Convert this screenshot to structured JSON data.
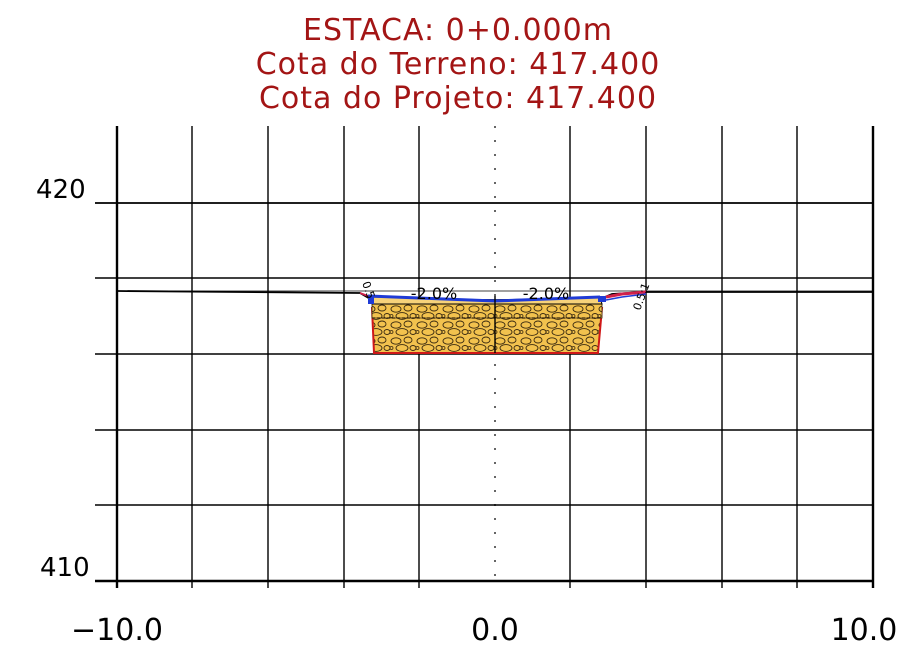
{
  "header": {
    "station": "ESTACA: 0+0.000m",
    "ground_elevation": "Cota do Terreno:  417.400",
    "design_elevation": "Cota do Projeto: 417.400"
  },
  "axes": {
    "x_ticks": [
      "−10.0",
      "0.0",
      "10.0"
    ],
    "y_ticks": [
      "420",
      "410"
    ]
  },
  "annotations": {
    "slope_left": "-2.0%",
    "slope_right": "-2.0%",
    "side_slope_left": "0.5",
    "side_slope_right": "0.5:1"
  },
  "colors": {
    "title": "#a31515",
    "grid": "#000000",
    "pavement_top": "#1f3bd6",
    "base_fill": "#f2c24e",
    "subbase_outline": "#d01818",
    "ditch_right": "#d0204a"
  },
  "chart_data": {
    "type": "cross-section",
    "x_range": [
      -10,
      10
    ],
    "y_range": [
      410,
      422
    ],
    "x_tick_values": [
      -10,
      0,
      10
    ],
    "y_tick_values": [
      410,
      420
    ],
    "terrain_profile": [
      [
        -10,
        417.3
      ],
      [
        -3.5,
        417.2
      ],
      [
        -3.2,
        417.0
      ],
      [
        2.8,
        417.0
      ],
      [
        3.2,
        417.1
      ],
      [
        4.2,
        417.2
      ],
      [
        10,
        417.3
      ]
    ],
    "pavement_width": [
      -3.2,
      2.8
    ],
    "pavement_crown_x": 0,
    "cross_slope_left": -2.0,
    "cross_slope_right": -2.0
  }
}
